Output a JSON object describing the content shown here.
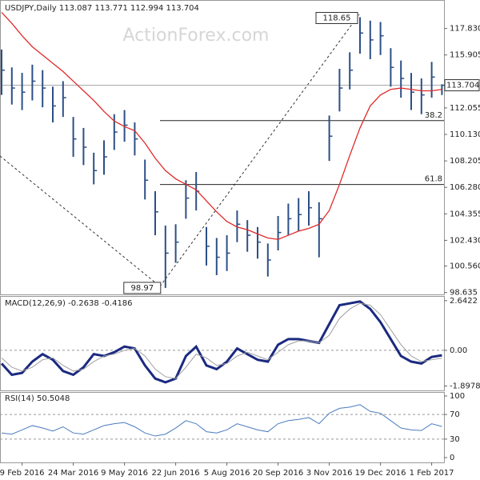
{
  "chart_data": [
    {
      "type": "ohlc",
      "title": "USDJPY,Daily",
      "quote_open": 113.087,
      "watermark": "ActionForex.com",
      "categories": [
        null,
        null,
        "9 Feb 2016",
        null,
        null,
        null,
        null,
        "24 Mar 2016",
        null,
        null,
        null,
        null,
        "9 May 2016",
        null,
        null,
        null,
        null,
        "22 Jun 2016",
        null,
        null,
        null,
        null,
        "5 Aug 2016",
        null,
        null,
        null,
        null,
        "20 Sep 2016",
        null,
        null,
        null,
        null,
        "3 Nov 2016",
        null,
        null,
        null,
        null,
        "19 Dec 2016",
        null,
        null,
        null,
        null,
        "1 Feb 2017",
        null
      ],
      "high": [
        116.3,
        115.0,
        114.6,
        115.2,
        114.8,
        113.6,
        114.0,
        111.4,
        110.6,
        108.8,
        109.7,
        111.6,
        111.9,
        111.0,
        108.3,
        106.0,
        103.5,
        103.6,
        106.8,
        107.4,
        103.4,
        102.6,
        102.8,
        104.6,
        103.9,
        103.4,
        102.2,
        104.2,
        105.1,
        105.5,
        106.0,
        105.2,
        111.5,
        114.9,
        116.1,
        118.65,
        118.4,
        118.3,
        116.4,
        115.5,
        114.6,
        114.2,
        115.4,
        113.771
      ],
      "low": [
        113.0,
        112.3,
        111.9,
        112.6,
        112.1,
        111.0,
        111.4,
        108.5,
        107.9,
        106.5,
        107.2,
        109.0,
        109.6,
        108.6,
        105.4,
        102.8,
        98.97,
        100.8,
        104.0,
        104.6,
        100.6,
        99.9,
        100.2,
        102.3,
        101.6,
        101.1,
        99.8,
        101.7,
        102.8,
        103.1,
        103.5,
        101.2,
        108.2,
        111.8,
        113.4,
        116.0,
        115.6,
        115.9,
        113.6,
        112.8,
        111.9,
        111.6,
        112.8,
        112.994
      ],
      "close": [
        114.8,
        113.5,
        113.2,
        114.0,
        113.5,
        112.2,
        112.8,
        109.8,
        109.2,
        107.5,
        108.5,
        110.3,
        110.8,
        109.8,
        106.8,
        104.5,
        101.5,
        102.3,
        105.5,
        106.0,
        102.0,
        101.2,
        101.5,
        103.6,
        102.8,
        102.3,
        101.0,
        103.0,
        104.0,
        104.3,
        104.8,
        104.0,
        110.0,
        113.5,
        114.8,
        117.5,
        117.0,
        117.3,
        115.0,
        114.2,
        113.2,
        113.0,
        114.3,
        113.704
      ],
      "ma_values": [
        119.0,
        118.2,
        117.3,
        116.5,
        115.9,
        115.3,
        114.7,
        114.0,
        113.3,
        112.6,
        111.8,
        111.1,
        110.7,
        110.4,
        109.5,
        108.4,
        107.5,
        106.9,
        106.5,
        106.1,
        105.3,
        104.5,
        103.8,
        103.4,
        103.2,
        102.9,
        102.6,
        102.5,
        102.8,
        103.1,
        103.3,
        103.6,
        104.6,
        106.5,
        108.6,
        110.6,
        112.2,
        113.0,
        113.4,
        113.5,
        113.4,
        113.3,
        113.3,
        113.4
      ],
      "bar_color": "#2c4f86",
      "ma_color": "#e02a2a",
      "fib_levels": [
        {
          "ratio": 38.2,
          "price": 111.13
        },
        {
          "ratio": 61.8,
          "price": 106.49
        }
      ],
      "ylim": [
        98.5,
        119.9
      ],
      "yticks": [
        98.635,
        {
          "value": 100.56,
          "label": "100.560"
        },
        {
          "value": 102.43,
          "label": "102.430"
        },
        104.355,
        {
          "value": 106.28,
          "label": "106.280"
        },
        108.205,
        {
          "value": 110.13,
          "label": "110.130"
        },
        112.055,
        115.905,
        {
          "value": 117.83,
          "label": "117.830"
        }
      ]
    },
    {
      "type": "line",
      "title": "MACD(12,26,9)",
      "series": [
        {
          "color": "#1b2a80",
          "width": 3,
          "values": [
            -0.7,
            -1.3,
            -1.2,
            -0.6,
            -0.2,
            -0.5,
            -1.1,
            -1.3,
            -0.9,
            -0.2,
            -0.3,
            -0.1,
            0.2,
            0.1,
            -0.8,
            -1.5,
            -1.7,
            -1.5,
            -0.3,
            0.2,
            -0.8,
            -1.0,
            -0.6,
            0.1,
            -0.2,
            -0.5,
            -0.6,
            0.3,
            0.6,
            0.6,
            0.5,
            0.4,
            1.4,
            2.4,
            2.5,
            2.6,
            2.2,
            1.5,
            0.6,
            -0.3,
            -0.6,
            -0.7,
            -0.35,
            -0.2638
          ]
        },
        {
          "color": "#a0a0a0",
          "width": 1,
          "values": [
            -0.4,
            -0.9,
            -1.1,
            -0.9,
            -0.5,
            -0.4,
            -0.8,
            -1.1,
            -1.0,
            -0.6,
            -0.3,
            -0.2,
            0.0,
            0.1,
            -0.3,
            -1.0,
            -1.4,
            -1.5,
            -0.9,
            -0.2,
            -0.4,
            -0.8,
            -0.7,
            -0.3,
            -0.1,
            -0.3,
            -0.5,
            -0.1,
            0.3,
            0.5,
            0.5,
            0.4,
            0.8,
            1.7,
            2.2,
            2.5,
            2.4,
            1.9,
            1.1,
            0.3,
            -0.3,
            -0.6,
            -0.5,
            -0.4186
          ]
        }
      ],
      "ylim": [
        -2.13,
        2.89
      ],
      "yticks": [
        2.6422,
        {
          "value": 0,
          "label": "0.00"
        },
        -1.8978
      ]
    },
    {
      "type": "line",
      "title": "RSI(14)",
      "series": [
        {
          "color": "#4a7bbf",
          "width": 1,
          "values": [
            40,
            38,
            45,
            52,
            48,
            43,
            50,
            40,
            38,
            45,
            52,
            55,
            57,
            50,
            40,
            35,
            38,
            48,
            60,
            55,
            42,
            40,
            45,
            55,
            50,
            45,
            42,
            55,
            60,
            62,
            65,
            55,
            72,
            80,
            82,
            86,
            75,
            72,
            60,
            48,
            45,
            44,
            55,
            50.5048
          ]
        }
      ],
      "ylim": [
        -7.8,
        106.5
      ],
      "yticks": [
        100,
        70,
        30,
        0
      ]
    }
  ]
}
